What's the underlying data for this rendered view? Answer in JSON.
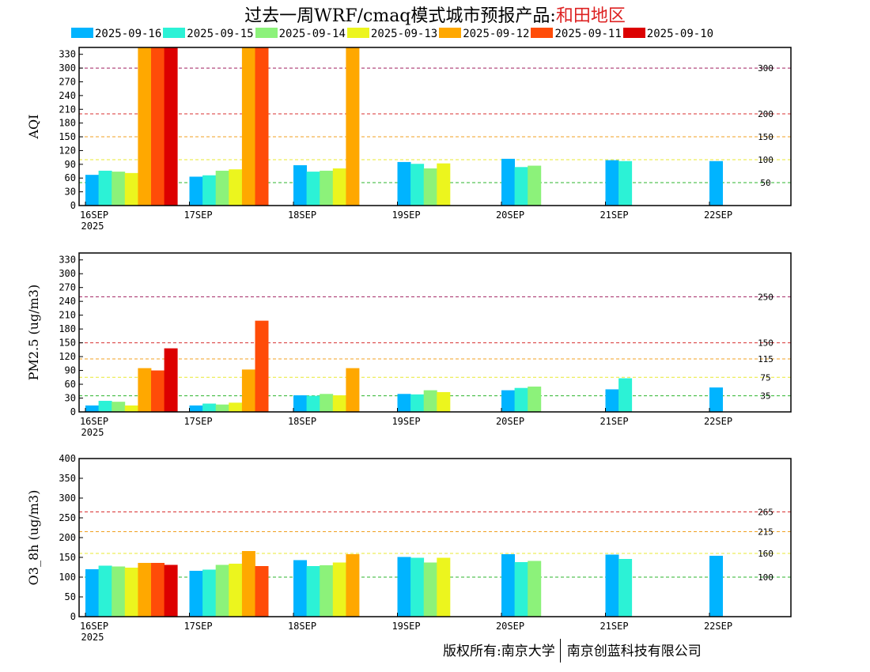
{
  "title": {
    "prefix": "过去一周WRF/cmaq模式城市预报产品:",
    "region": "和田地区"
  },
  "legend": [
    {
      "label": "2025-09-16",
      "color": "#00b4ff"
    },
    {
      "label": "2025-09-15",
      "color": "#2cf2d6"
    },
    {
      "label": "2025-09-14",
      "color": "#8cf27a"
    },
    {
      "label": "2025-09-13",
      "color": "#ecf51e"
    },
    {
      "label": "2025-09-12",
      "color": "#ffa800"
    },
    {
      "label": "2025-09-11",
      "color": "#ff4c08"
    },
    {
      "label": "2025-09-10",
      "color": "#dc0000"
    }
  ],
  "footer": {
    "left": "版权所有:南京大学",
    "right": "南京创蓝科技有限公司"
  },
  "chart_data": [
    {
      "type": "bar",
      "ylabel": "AQI",
      "ylim": [
        0,
        345
      ],
      "yticks": [
        0,
        30,
        60,
        90,
        120,
        150,
        180,
        210,
        240,
        270,
        300,
        330
      ],
      "thresholds": [
        {
          "value": 50,
          "label": "50",
          "color": "#2db52d"
        },
        {
          "value": 100,
          "label": "100",
          "color": "#e8e830"
        },
        {
          "value": 150,
          "label": "150",
          "color": "#f0a020"
        },
        {
          "value": 200,
          "label": "200",
          "color": "#d83030"
        },
        {
          "value": 300,
          "label": "300",
          "color": "#a02060"
        }
      ],
      "x_labels": [
        "16SEP",
        "17SEP",
        "18SEP",
        "19SEP",
        "20SEP",
        "21SEP",
        "22SEP"
      ],
      "year_label": "2025",
      "days": [
        [
          67,
          76,
          74,
          71,
          345,
          345,
          345
        ],
        [
          63,
          66,
          76,
          79,
          345,
          345
        ],
        [
          88,
          74,
          76,
          81,
          345
        ],
        [
          95,
          91,
          81,
          92
        ],
        [
          102,
          84,
          87
        ],
        [
          99,
          97
        ],
        [
          97
        ]
      ]
    },
    {
      "type": "bar",
      "ylabel": "PM2.5 (ug/m3)",
      "ylim": [
        0,
        345
      ],
      "yticks": [
        0,
        30,
        60,
        90,
        120,
        150,
        180,
        210,
        240,
        270,
        300,
        330
      ],
      "thresholds": [
        {
          "value": 35,
          "label": "35",
          "color": "#2db52d"
        },
        {
          "value": 75,
          "label": "75",
          "color": "#e8e830"
        },
        {
          "value": 115,
          "label": "115",
          "color": "#f0a020"
        },
        {
          "value": 150,
          "label": "150",
          "color": "#d83030"
        },
        {
          "value": 250,
          "label": "250",
          "color": "#a02060"
        }
      ],
      "x_labels": [
        "16SEP",
        "17SEP",
        "18SEP",
        "19SEP",
        "20SEP",
        "21SEP",
        "22SEP"
      ],
      "year_label": "2025",
      "days": [
        [
          14,
          24,
          22,
          14,
          95,
          90,
          138
        ],
        [
          14,
          18,
          16,
          20,
          92,
          198
        ],
        [
          36,
          35,
          39,
          36,
          95
        ],
        [
          39,
          38,
          47,
          43
        ],
        [
          47,
          52,
          55
        ],
        [
          49,
          73
        ],
        [
          53
        ]
      ]
    },
    {
      "type": "bar",
      "ylabel": "O3_8h (ug/m3)",
      "ylim": [
        0,
        400
      ],
      "yticks": [
        0,
        50,
        100,
        150,
        200,
        250,
        300,
        350,
        400
      ],
      "thresholds": [
        {
          "value": 100,
          "label": "100",
          "color": "#2db52d"
        },
        {
          "value": 160,
          "label": "160",
          "color": "#e8e830"
        },
        {
          "value": 215,
          "label": "215",
          "color": "#f0a020"
        },
        {
          "value": 265,
          "label": "265",
          "color": "#d83030"
        }
      ],
      "x_labels": [
        "16SEP",
        "17SEP",
        "18SEP",
        "19SEP",
        "20SEP",
        "21SEP",
        "22SEP"
      ],
      "year_label": "2025",
      "days": [
        [
          120,
          129,
          127,
          124,
          136,
          136,
          131
        ],
        [
          116,
          119,
          131,
          134,
          166,
          128
        ],
        [
          143,
          128,
          130,
          137,
          158
        ],
        [
          151,
          149,
          137,
          149
        ],
        [
          158,
          138,
          141
        ],
        [
          157,
          146
        ],
        [
          154
        ]
      ]
    }
  ]
}
